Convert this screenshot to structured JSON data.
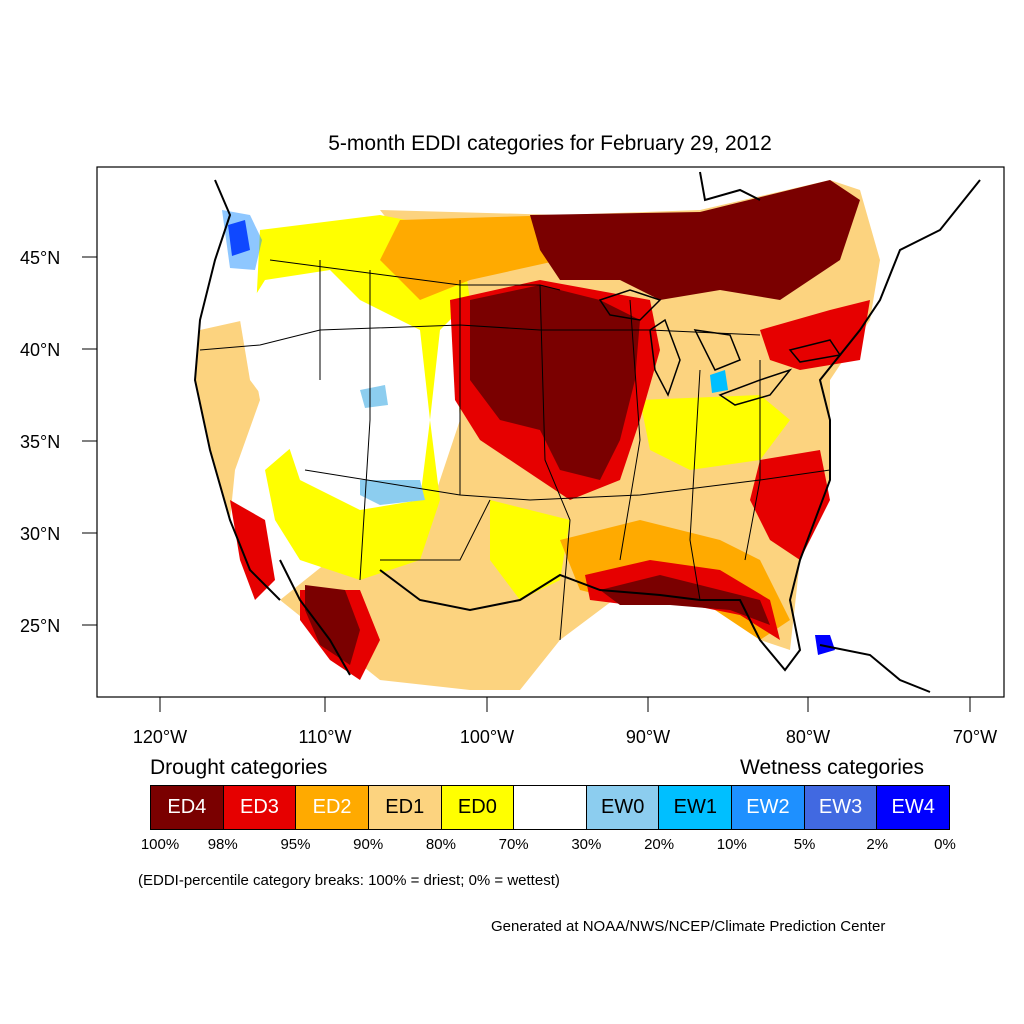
{
  "title": "5-month EDDI categories for February 29, 2012",
  "lat_labels": [
    "45°N",
    "40°N",
    "35°N",
    "30°N",
    "25°N"
  ],
  "lon_labels": [
    "120°W",
    "110°W",
    "100°W",
    "90°W",
    "80°W",
    "70°W"
  ],
  "legend": {
    "drought_title": "Drought categories",
    "wetness_title": "Wetness categories",
    "categories": [
      {
        "label": "ED4",
        "color": "#7a0000",
        "text_color": "#ffffff"
      },
      {
        "label": "ED3",
        "color": "#e60000",
        "text_color": "#ffffff"
      },
      {
        "label": "ED2",
        "color": "#ffaa00",
        "text_color": "#ffffff"
      },
      {
        "label": "ED1",
        "color": "#fcd37f",
        "text_color": "#000000"
      },
      {
        "label": "ED0",
        "color": "#ffff00",
        "text_color": "#000000"
      },
      {
        "label": "",
        "color": "#ffffff",
        "text_color": "#000000"
      },
      {
        "label": "EW0",
        "color": "#8ccdef",
        "text_color": "#000000"
      },
      {
        "label": "EW1",
        "color": "#00bfff",
        "text_color": "#000000"
      },
      {
        "label": "EW2",
        "color": "#1e90ff",
        "text_color": "#ffffff"
      },
      {
        "label": "EW3",
        "color": "#4169e1",
        "text_color": "#ffffff"
      },
      {
        "label": "EW4",
        "color": "#0000ff",
        "text_color": "#ffffff"
      }
    ],
    "breaks": [
      "100%",
      "98%",
      "95%",
      "90%",
      "80%",
      "70%",
      "30%",
      "20%",
      "10%",
      "5%",
      "2%",
      "0%"
    ]
  },
  "note": "(EDDI-percentile category breaks: 100% = driest; 0% = wettest)",
  "credit": "Generated at NOAA/NWS/NCEP/Climate Prediction Center"
}
